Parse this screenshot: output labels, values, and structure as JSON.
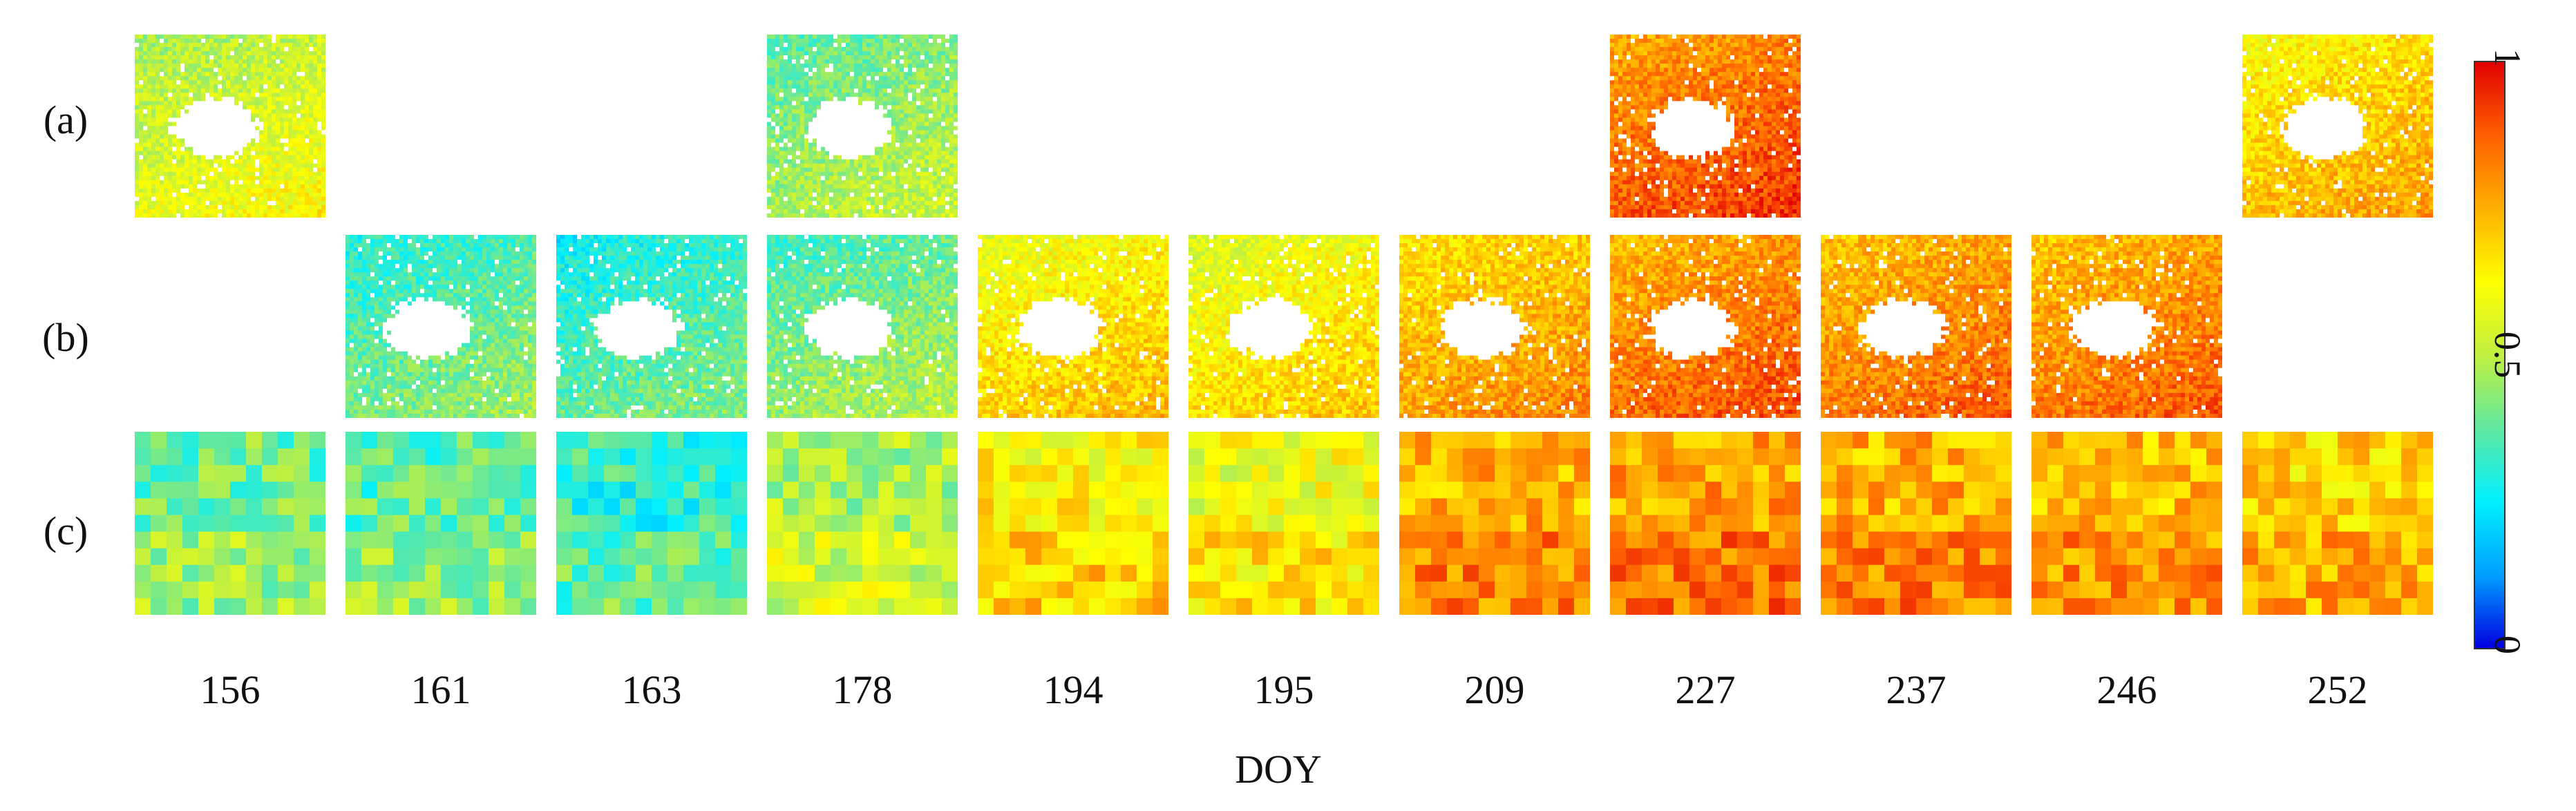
{
  "x_axis_label": "DOY",
  "row_labels": [
    "(a)",
    "(b)",
    "(c)"
  ],
  "doy_values": [
    "156",
    "161",
    "163",
    "178",
    "194",
    "195",
    "209",
    "227",
    "237",
    "246",
    "252"
  ],
  "colorbar": {
    "min_label": "0",
    "mid_label": "0.5",
    "max_label": "1",
    "colors": [
      "#0000e0",
      "#00a0ff",
      "#00f0ff",
      "#60e8a0",
      "#c0f040",
      "#ffff00",
      "#ffb000",
      "#ff6000",
      "#e00000"
    ]
  },
  "rows": [
    {
      "label": "(a)",
      "kind": "fine",
      "panels": [
        {
          "doy": "156",
          "present": true,
          "level": 0.55
        },
        {
          "doy": "161",
          "present": false
        },
        {
          "doy": "163",
          "present": false
        },
        {
          "doy": "178",
          "present": true,
          "level": 0.45
        },
        {
          "doy": "194",
          "present": false
        },
        {
          "doy": "195",
          "present": false
        },
        {
          "doy": "209",
          "present": false
        },
        {
          "doy": "227",
          "present": true,
          "level": 0.85
        },
        {
          "doy": "237",
          "present": false
        },
        {
          "doy": "246",
          "present": false
        },
        {
          "doy": "252",
          "present": true,
          "level": 0.7
        }
      ]
    },
    {
      "label": "(b)",
      "kind": "fine",
      "panels": [
        {
          "doy": "156",
          "present": false
        },
        {
          "doy": "161",
          "present": true,
          "level": 0.38
        },
        {
          "doy": "163",
          "present": true,
          "level": 0.35
        },
        {
          "doy": "178",
          "present": true,
          "level": 0.42
        },
        {
          "doy": "194",
          "present": true,
          "level": 0.66
        },
        {
          "doy": "195",
          "present": true,
          "level": 0.64
        },
        {
          "doy": "209",
          "present": true,
          "level": 0.74
        },
        {
          "doy": "227",
          "present": true,
          "level": 0.82
        },
        {
          "doy": "237",
          "present": true,
          "level": 0.8
        },
        {
          "doy": "246",
          "present": true,
          "level": 0.8
        },
        {
          "doy": "252",
          "present": false
        }
      ]
    },
    {
      "label": "(c)",
      "kind": "coarse",
      "panels": [
        {
          "doy": "156",
          "present": true,
          "level": 0.42
        },
        {
          "doy": "161",
          "present": true,
          "level": 0.4
        },
        {
          "doy": "163",
          "present": true,
          "level": 0.34
        },
        {
          "doy": "178",
          "present": true,
          "level": 0.5
        },
        {
          "doy": "194",
          "present": true,
          "level": 0.66
        },
        {
          "doy": "195",
          "present": true,
          "level": 0.62
        },
        {
          "doy": "209",
          "present": true,
          "level": 0.78
        },
        {
          "doy": "227",
          "present": true,
          "level": 0.8
        },
        {
          "doy": "237",
          "present": true,
          "level": 0.78
        },
        {
          "doy": "246",
          "present": true,
          "level": 0.76
        },
        {
          "doy": "252",
          "present": true,
          "level": 0.72
        }
      ]
    }
  ]
}
